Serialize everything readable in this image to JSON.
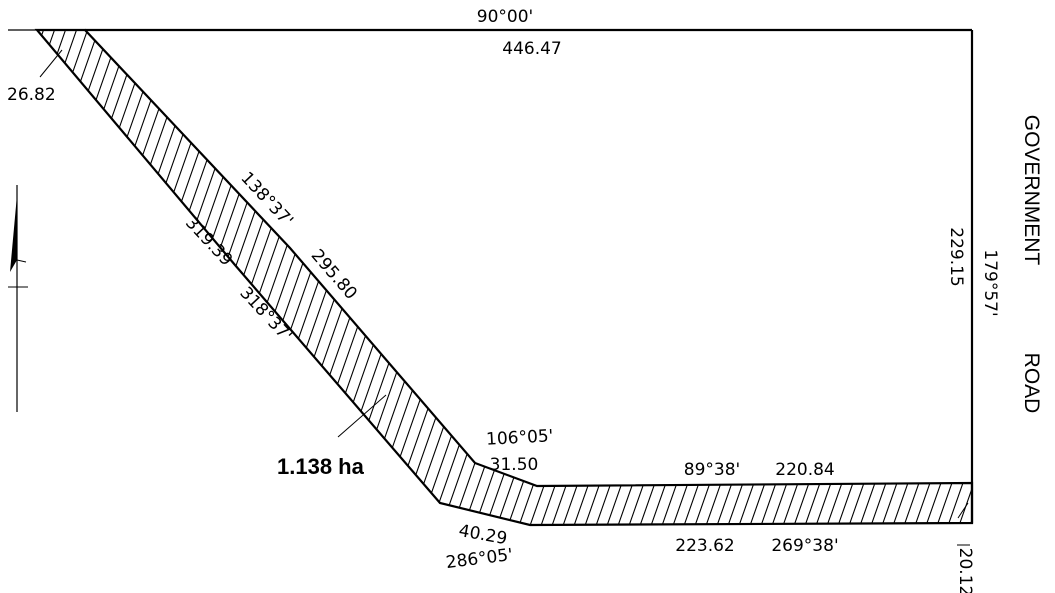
{
  "area_label": "1.138 ha",
  "road_label": {
    "word1": "GOVERNMENT",
    "word2": "ROAD"
  },
  "bottom_road_label": "",
  "top_boundary": {
    "bearing": "90°00'",
    "distance": "446.47"
  },
  "right_boundary": {
    "bearing": "179°57'",
    "distance": "229.15"
  },
  "diagonal_inner": {
    "bearing": "138°37'",
    "distance": "295.80"
  },
  "diagonal_outer": {
    "bearing": "318°37'",
    "distance": "319.39"
  },
  "top_width": {
    "distance": "26.82"
  },
  "right_width": {
    "distance": "20.12"
  },
  "short_inner": {
    "bearing": "106°05'",
    "distance": "31.50"
  },
  "short_outer": {
    "bearing": "286°05'",
    "distance": "40.29"
  },
  "bottom_inner": {
    "bearing": "89°38'",
    "distance": "220.84"
  },
  "bottom_outer": {
    "bearing": "269°38'",
    "distance": "223.62"
  },
  "colors": {
    "line": "#000000",
    "hatch": "#000000",
    "background": "#ffffff"
  },
  "icons": {
    "north_arrow": "north-arrow-icon"
  }
}
